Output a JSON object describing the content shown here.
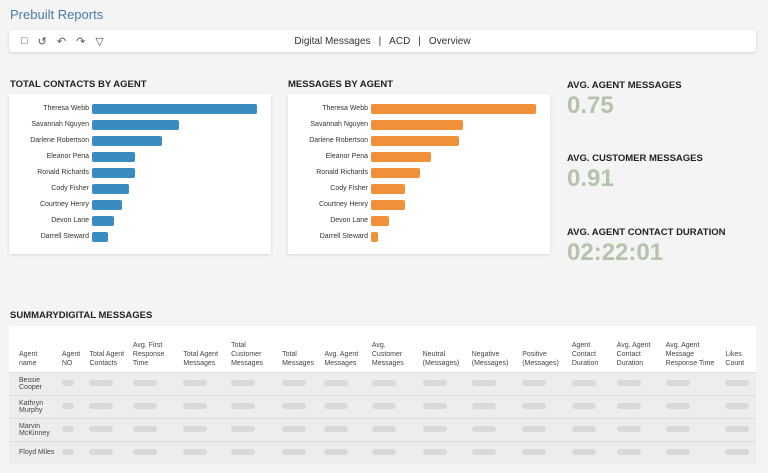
{
  "header": {
    "title": "Prebuilt Reports"
  },
  "toolbar": {
    "icons": [
      "bookmark-icon",
      "history-icon",
      "undo-icon",
      "redo-icon",
      "filter-icon"
    ],
    "breadcrumb": [
      "Digital Messages",
      "ACD",
      "Overview"
    ]
  },
  "charts": {
    "contacts": {
      "title": "TOTAL CONTACTS BY AGENT"
    },
    "messages": {
      "title": "MESSAGES BY AGENT"
    }
  },
  "chart_data": [
    {
      "type": "bar",
      "orientation": "horizontal",
      "title": "TOTAL CONTACTS BY AGENT",
      "categories": [
        "Theresa Webb",
        "Savannah Nguyen",
        "Darlene Robertson",
        "Eleanor Pena",
        "Ronald Richards",
        "Cody Fisher",
        "Courtney Henry",
        "Devon Lane",
        "Darrell Steward"
      ],
      "values": [
        165,
        87,
        70,
        43,
        43,
        37,
        30,
        22,
        16
      ],
      "color": "#3a8bbf",
      "axis": "none",
      "note_values": "relative lengths, no axis printed"
    },
    {
      "type": "bar",
      "orientation": "horizontal",
      "title": "MESSAGES BY AGENT",
      "categories": [
        "Theresa Webb",
        "Savannah Nguyen",
        "Darlene Robertson",
        "Eleanor Pena",
        "Ronald Richards",
        "Cody Fisher",
        "Courtney Henry",
        "Devon Lane",
        "Darrell Steward"
      ],
      "values": [
        146,
        81,
        78,
        53,
        43,
        30,
        30,
        16,
        6
      ],
      "color": "#f0913a",
      "axis": "none"
    }
  ],
  "kpis": [
    {
      "label": "AVG. AGENT MESSAGES",
      "value": "0.75"
    },
    {
      "label": "AVG. CUSTOMER MESSAGES",
      "value": "0.91"
    },
    {
      "label": "AVG. AGENT CONTACT DURATION",
      "value": "02:22:01"
    }
  ],
  "summary": {
    "title": "SUMMARYDIGITAL MESSAGES",
    "columns": [
      "Agent name",
      "Agent NO",
      "Total Agent Contacts",
      "Avg. First Response Time",
      "Total Agent Messages",
      "Total Customer Messages",
      "Total Messages",
      "Avg. Agent Messages",
      "Avg. Customer Messages",
      "Neutral (Messages)",
      "Negative (Messages)",
      "Positive (Messages)",
      "Agent Contact Duration",
      "Avg. Agent Contact Duration",
      "Avg. Agent Message Response Time",
      "Likes Count"
    ],
    "rows": [
      "Bessie Cooper",
      "Kathryn Murphy",
      "Marvin McKinney",
      "Floyd Miles"
    ]
  }
}
